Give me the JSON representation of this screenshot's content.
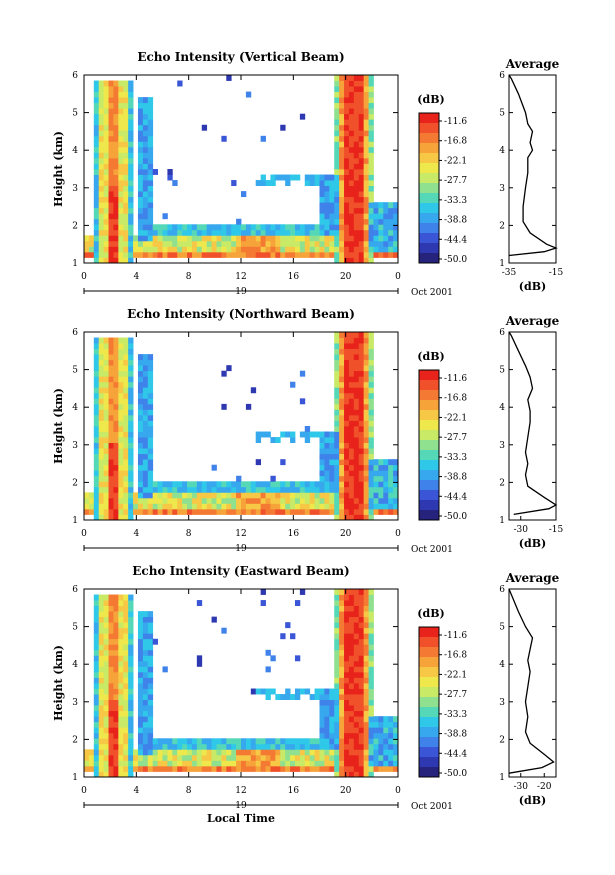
{
  "chart_data": [
    {
      "type": "heatmap",
      "title": "Echo Intensity (Vertical Beam)",
      "ylabel": "Height (km)",
      "x_ticks": [
        "0",
        "4",
        "8",
        "12",
        "16",
        "20",
        "0"
      ],
      "y_ticks": [
        "1",
        "2",
        "3",
        "4",
        "5",
        "6"
      ],
      "xlim": [
        0,
        24
      ],
      "ylim": [
        1,
        6
      ],
      "date_label": "19",
      "date_suffix": "Oct 2001",
      "colorbar_unit": "(dB)",
      "colorbar_labels": [
        "-11.6",
        "-16.8",
        "-22.1",
        "-27.7",
        "-33.3",
        "-38.8",
        "-44.4",
        "-50.0"
      ],
      "average_profile": {
        "title": "Average",
        "xlabel": "(dB)",
        "x_ticks": [
          "-35",
          "-15"
        ],
        "xlim": [
          -35,
          -15
        ],
        "y_ticks": [
          "1",
          "2",
          "3",
          "4",
          "5",
          "6"
        ],
        "ylim": [
          1,
          6
        ],
        "points": [
          [
            -35,
            1.2
          ],
          [
            -20,
            1.3
          ],
          [
            -15,
            1.4
          ],
          [
            -19,
            1.5
          ],
          [
            -26,
            1.8
          ],
          [
            -29,
            2.1
          ],
          [
            -29,
            2.5
          ],
          [
            -28,
            3.0
          ],
          [
            -27,
            3.4
          ],
          [
            -27,
            3.8
          ],
          [
            -25,
            4.0
          ],
          [
            -26,
            4.2
          ],
          [
            -25,
            4.5
          ],
          [
            -27,
            4.7
          ],
          [
            -28,
            5.0
          ],
          [
            -31,
            5.5
          ],
          [
            -34,
            5.9
          ],
          [
            -35,
            6.0
          ]
        ]
      }
    },
    {
      "type": "heatmap",
      "title": "Echo Intensity (Northward Beam)",
      "ylabel": "Height (km)",
      "x_ticks": [
        "0",
        "4",
        "8",
        "12",
        "16",
        "20",
        "0"
      ],
      "y_ticks": [
        "1",
        "2",
        "3",
        "4",
        "5",
        "6"
      ],
      "xlim": [
        0,
        24
      ],
      "ylim": [
        1,
        6
      ],
      "date_label": "19",
      "date_suffix": "Oct 2001",
      "colorbar_unit": "(dB)",
      "colorbar_labels": [
        "-11.6",
        "-16.8",
        "-22.1",
        "-27.7",
        "-33.3",
        "-38.8",
        "-44.4",
        "-50.0"
      ],
      "average_profile": {
        "title": "Average",
        "xlabel": "(dB)",
        "x_ticks": [
          "-30",
          "-15"
        ],
        "xlim": [
          -35,
          -15
        ],
        "y_ticks": [
          "1",
          "2",
          "3",
          "4",
          "5",
          "6"
        ],
        "ylim": [
          1,
          6
        ],
        "points": [
          [
            -33,
            1.15
          ],
          [
            -18,
            1.3
          ],
          [
            -15,
            1.4
          ],
          [
            -20,
            1.6
          ],
          [
            -27,
            1.9
          ],
          [
            -28,
            2.2
          ],
          [
            -27,
            2.5
          ],
          [
            -28,
            2.8
          ],
          [
            -27,
            3.2
          ],
          [
            -26,
            3.6
          ],
          [
            -26,
            3.9
          ],
          [
            -27,
            4.2
          ],
          [
            -25,
            4.5
          ],
          [
            -26,
            4.8
          ],
          [
            -28,
            5.1
          ],
          [
            -31,
            5.5
          ],
          [
            -34,
            5.9
          ],
          [
            -35,
            6.0
          ]
        ]
      }
    },
    {
      "type": "heatmap",
      "title": "Echo Intensity (Eastward Beam)",
      "ylabel": "Height (km)",
      "xlabel": "Local Time",
      "x_ticks": [
        "0",
        "4",
        "8",
        "12",
        "16",
        "20",
        "0"
      ],
      "y_ticks": [
        "1",
        "2",
        "3",
        "4",
        "5",
        "6"
      ],
      "xlim": [
        0,
        24
      ],
      "ylim": [
        1,
        6
      ],
      "date_label": "19",
      "date_suffix": "Oct 2001",
      "colorbar_unit": "(dB)",
      "colorbar_labels": [
        "-11.6",
        "-16.8",
        "-22.1",
        "-27.7",
        "-33.3",
        "-38.8",
        "-44.4",
        "-50.0"
      ],
      "average_profile": {
        "title": "Average",
        "xlabel": "(dB)",
        "x_ticks": [
          "-30",
          "-20"
        ],
        "xlim": [
          -35,
          -15
        ],
        "y_ticks": [
          "1",
          "2",
          "3",
          "4",
          "5",
          "6"
        ],
        "ylim": [
          1,
          6
        ],
        "points": [
          [
            -35,
            1.1
          ],
          [
            -21,
            1.25
          ],
          [
            -16,
            1.4
          ],
          [
            -20,
            1.6
          ],
          [
            -26,
            1.9
          ],
          [
            -28,
            2.2
          ],
          [
            -27,
            2.6
          ],
          [
            -28,
            3.0
          ],
          [
            -27,
            3.4
          ],
          [
            -26,
            3.8
          ],
          [
            -27,
            4.1
          ],
          [
            -26,
            4.4
          ],
          [
            -25,
            4.7
          ],
          [
            -28,
            5.0
          ],
          [
            -31,
            5.4
          ],
          [
            -33,
            5.7
          ],
          [
            -35,
            6.0
          ]
        ]
      }
    }
  ]
}
